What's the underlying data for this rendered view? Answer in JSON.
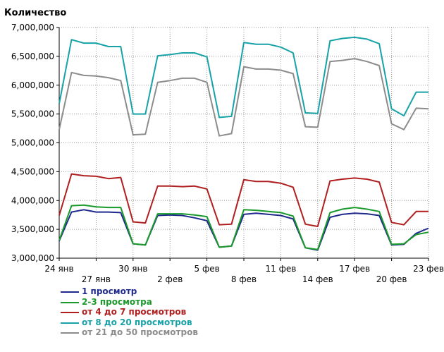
{
  "chart_data": {
    "type": "line",
    "ylabel": "Количество",
    "ylim": [
      3000000,
      7000000
    ],
    "yticks": [
      3000000,
      3500000,
      4000000,
      4500000,
      5000000,
      5500000,
      6000000,
      6500000,
      7000000
    ],
    "ytick_labels": [
      "3,000,000",
      "3,500,000",
      "4,000,000",
      "4,500,000",
      "5,000,000",
      "5,500,000",
      "6,000,000",
      "6,500,000",
      "7,000,000"
    ],
    "x_dates": [
      "2014-01-24",
      "2014-01-25",
      "2014-01-26",
      "2014-01-27",
      "2014-01-28",
      "2014-01-29",
      "2014-01-30",
      "2014-01-31",
      "2014-02-01",
      "2014-02-02",
      "2014-02-03",
      "2014-02-04",
      "2014-02-05",
      "2014-02-06",
      "2014-02-07",
      "2014-02-08",
      "2014-02-09",
      "2014-02-10",
      "2014-02-11",
      "2014-02-12",
      "2014-02-13",
      "2014-02-14",
      "2014-02-15",
      "2014-02-16",
      "2014-02-17",
      "2014-02-18",
      "2014-02-19",
      "2014-02-20",
      "2014-02-21",
      "2014-02-22",
      "2014-02-23"
    ],
    "xticks": [
      {
        "date": "2014-01-24",
        "label": "24 янв",
        "row": 1
      },
      {
        "date": "2014-01-27",
        "label": "27 янв",
        "row": 2
      },
      {
        "date": "2014-01-30",
        "label": "30 янв",
        "row": 1
      },
      {
        "date": "2014-02-02",
        "label": "2 фев",
        "row": 2
      },
      {
        "date": "2014-02-05",
        "label": "5 фев",
        "row": 1
      },
      {
        "date": "2014-02-08",
        "label": "8 фев",
        "row": 2
      },
      {
        "date": "2014-02-11",
        "label": "11 фев",
        "row": 1
      },
      {
        "date": "2014-02-14",
        "label": "14 фев",
        "row": 2
      },
      {
        "date": "2014-02-17",
        "label": "17 фев",
        "row": 1
      },
      {
        "date": "2014-02-20",
        "label": "20 фев",
        "row": 2
      },
      {
        "date": "2014-02-23",
        "label": "23 фев",
        "row": 1
      }
    ],
    "grid": true,
    "legend_position": "bottom-left",
    "series": [
      {
        "name": "1 просмотр",
        "color": "#1f2a8c",
        "values": [
          3300000,
          3800000,
          3840000,
          3800000,
          3800000,
          3790000,
          3250000,
          3230000,
          3740000,
          3750000,
          3740000,
          3700000,
          3650000,
          3190000,
          3210000,
          3760000,
          3780000,
          3760000,
          3740000,
          3680000,
          3180000,
          3140000,
          3710000,
          3760000,
          3780000,
          3770000,
          3740000,
          3230000,
          3240000,
          3430000,
          3520000
        ]
      },
      {
        "name": "2-3 просмотра",
        "color": "#1a9a2a",
        "values": [
          3310000,
          3910000,
          3920000,
          3890000,
          3880000,
          3880000,
          3250000,
          3230000,
          3770000,
          3770000,
          3770000,
          3750000,
          3720000,
          3190000,
          3210000,
          3840000,
          3830000,
          3810000,
          3790000,
          3730000,
          3180000,
          3150000,
          3790000,
          3850000,
          3880000,
          3850000,
          3810000,
          3240000,
          3250000,
          3410000,
          3450000
        ]
      },
      {
        "name": "от 4 до 7 просмотров",
        "color": "#b01f1f",
        "values": [
          3740000,
          4460000,
          4430000,
          4420000,
          4380000,
          4400000,
          3630000,
          3610000,
          4250000,
          4250000,
          4240000,
          4250000,
          4200000,
          3580000,
          3590000,
          4360000,
          4330000,
          4330000,
          4300000,
          4230000,
          3590000,
          3550000,
          4340000,
          4370000,
          4390000,
          4370000,
          4320000,
          3620000,
          3580000,
          3810000,
          3810000
        ]
      },
      {
        "name": "от 8 до 20 просмотров",
        "color": "#17a2a8",
        "values": [
          5680000,
          6790000,
          6730000,
          6730000,
          6670000,
          6670000,
          5500000,
          5500000,
          6510000,
          6530000,
          6560000,
          6560000,
          6490000,
          5440000,
          5460000,
          6740000,
          6710000,
          6710000,
          6660000,
          6560000,
          5520000,
          5510000,
          6770000,
          6810000,
          6830000,
          6800000,
          6720000,
          5590000,
          5470000,
          5880000,
          5880000
        ]
      },
      {
        "name": "от 21 до 50 просмотров",
        "color": "#8c8c8c",
        "values": [
          5230000,
          6220000,
          6170000,
          6160000,
          6130000,
          6080000,
          5140000,
          5150000,
          6050000,
          6080000,
          6120000,
          6120000,
          6050000,
          5120000,
          5160000,
          6320000,
          6280000,
          6280000,
          6260000,
          6200000,
          5280000,
          5270000,
          6410000,
          6430000,
          6460000,
          6410000,
          6340000,
          5330000,
          5230000,
          5600000,
          5590000
        ]
      }
    ]
  }
}
